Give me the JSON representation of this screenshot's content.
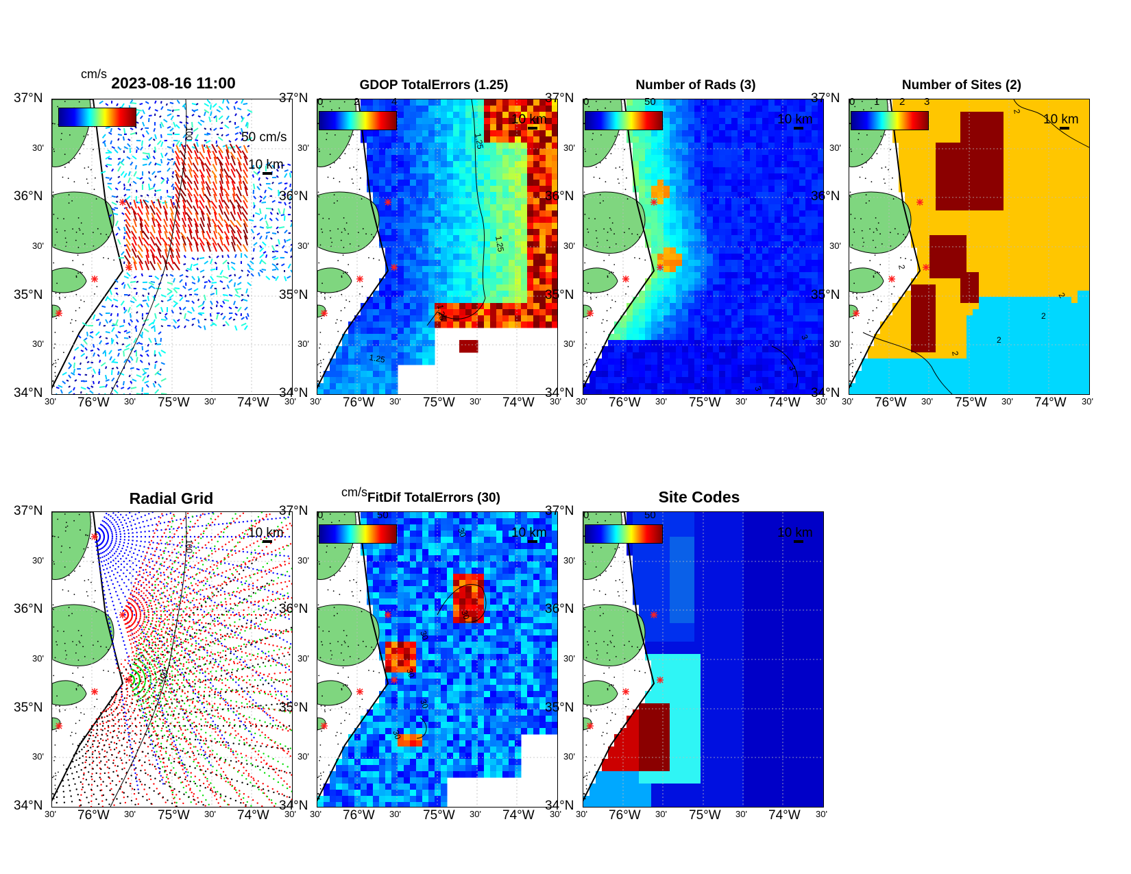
{
  "top_row": {
    "p1": {
      "title": "2023-08-16 11:00",
      "units": "cm/s",
      "vector_label": "50 cm/s",
      "scale": "10 km",
      "contour_label": "100"
    },
    "p2": {
      "title": "GDOP TotalErrors (1.25)",
      "cbar_ticks": [
        "0",
        "2",
        "4"
      ],
      "scale": "10 km",
      "contour_labels": [
        "1.25",
        "1.25",
        "1.25",
        "1.25"
      ]
    },
    "p3": {
      "title": "Number of Rads (3)",
      "cbar_ticks": [
        "0",
        "50"
      ],
      "scale": "10 km",
      "contour_labels": [
        "3",
        "3",
        "3"
      ]
    },
    "p4": {
      "title": "Number of Sites (2)",
      "cbar_ticks": [
        "0",
        "1",
        "2",
        "3"
      ],
      "scale": "10 km",
      "contour_labels": [
        "2",
        "2",
        "2",
        "2",
        "2",
        "2"
      ]
    }
  },
  "bottom_row": {
    "p5": {
      "title": "Radial Grid",
      "scale": "10 km",
      "contour_labels": [
        "100",
        "100"
      ]
    },
    "p6": {
      "title": "FitDif TotalErrors (30)",
      "units": "cm/s",
      "cbar_ticks": [
        "0",
        "50"
      ],
      "scale": "10 km",
      "contour_labels": [
        "30",
        "30",
        "30",
        "30",
        "30",
        "30"
      ]
    },
    "p7": {
      "title": "Site Codes",
      "cbar_ticks": [
        "0",
        "50"
      ],
      "scale": "10 km"
    }
  },
  "axes": {
    "lat_main": [
      "37°N",
      "36°N",
      "35°N",
      "34°N"
    ],
    "lat_minor": [
      "30'",
      "30'",
      "30'"
    ],
    "lon_main": [
      "76°W",
      "75°W",
      "74°W"
    ],
    "lon_minor": [
      "30'",
      "30'",
      "30'",
      "30'"
    ]
  },
  "colors": {
    "land": "#7fd67f",
    "jet_low": "#0000ff",
    "jet_high": "#800000",
    "sites_two": "#ffc600",
    "sites_one": "#00d8ff",
    "sites_three": "#8b0000"
  }
}
